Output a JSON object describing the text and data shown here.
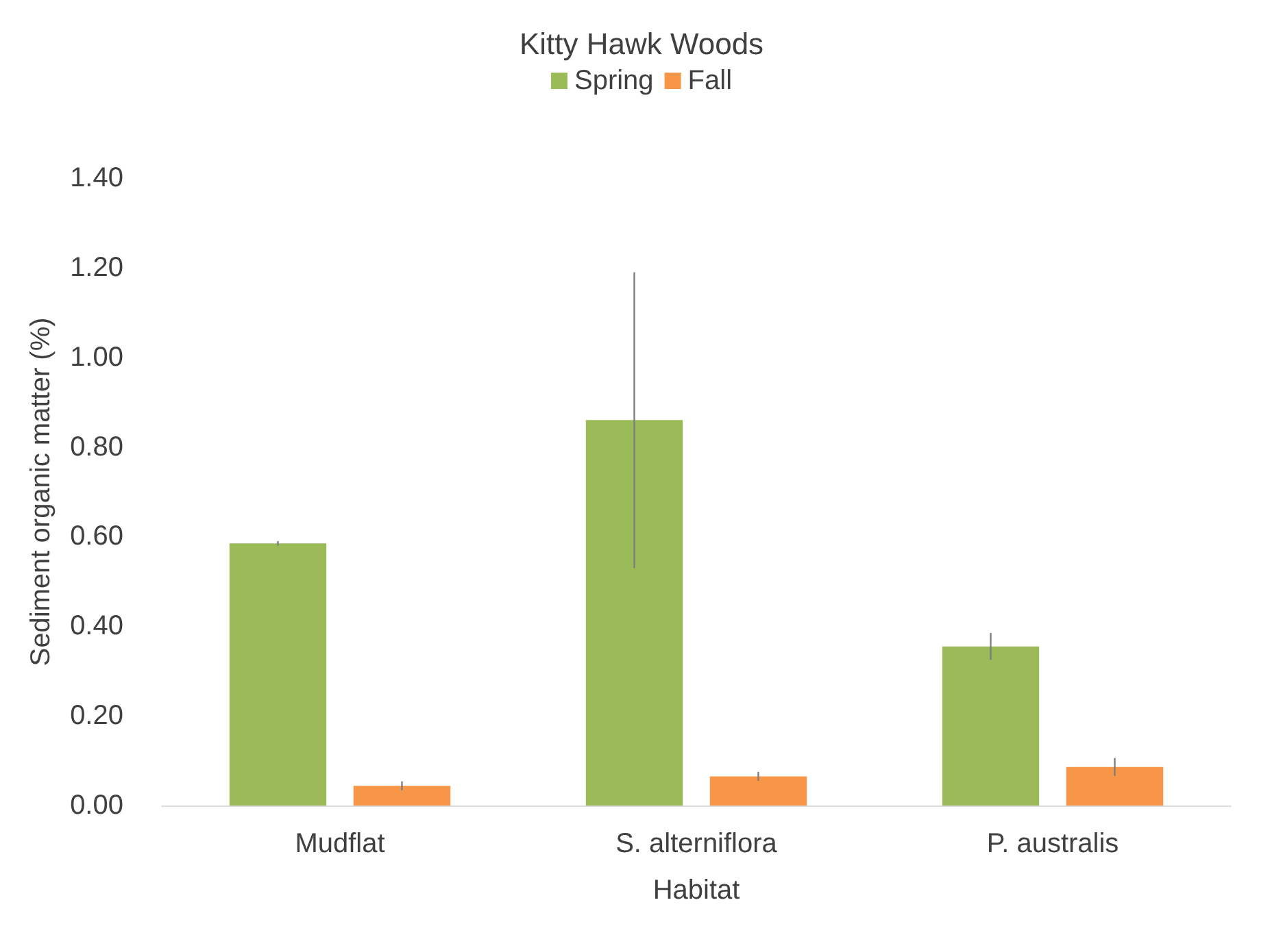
{
  "chart_data": {
    "type": "bar",
    "title": "Kitty Hawk Woods",
    "xlabel": "Habitat",
    "ylabel": "Sediment organic matter (%)",
    "categories": [
      "Mudflat",
      "S. alterniflora",
      "P. australis"
    ],
    "series": [
      {
        "name": "Spring",
        "color": "#9bbb59",
        "values": [
          0.585,
          0.86,
          0.355
        ],
        "errors": [
          0.005,
          0.33,
          0.03
        ]
      },
      {
        "name": "Fall",
        "color": "#f79646",
        "values": [
          0.044,
          0.065,
          0.086
        ],
        "errors": [
          0.01,
          0.01,
          0.02
        ]
      }
    ],
    "ylim": [
      0,
      1.4
    ],
    "yticks": [
      {
        "value": 0,
        "label": "0.00"
      },
      {
        "value": 0.2,
        "label": "0.20"
      },
      {
        "value": 0.4,
        "label": "0.40"
      },
      {
        "value": 0.6,
        "label": "0.60"
      },
      {
        "value": 0.8,
        "label": "0.80"
      },
      {
        "value": 1.0,
        "label": "1.00"
      },
      {
        "value": 1.2,
        "label": "1.20"
      },
      {
        "value": 1.4,
        "label": "1.40"
      }
    ],
    "grid": false,
    "legend": "top"
  }
}
